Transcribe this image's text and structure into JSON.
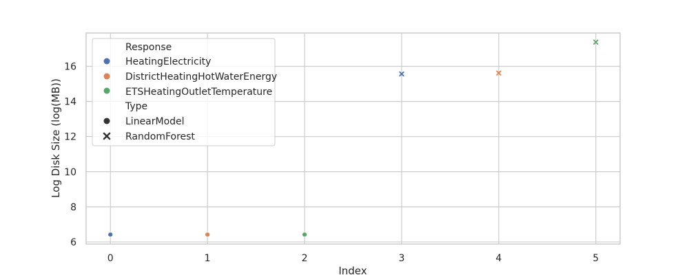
{
  "chart_data": {
    "type": "scatter",
    "title": "",
    "xlabel": "Index",
    "ylabel": "Log Disk Size (log(MB))",
    "xlim": [
      -0.25,
      5.25
    ],
    "ylim": [
      5.88,
      17.9
    ],
    "xticks": [
      0,
      1,
      2,
      3,
      4,
      5
    ],
    "yticks": [
      6,
      8,
      10,
      12,
      14,
      16
    ],
    "grid": true,
    "legend_position": "upper-left",
    "legend": {
      "hue_title": "Response",
      "style_title": "Type",
      "hue_entries": [
        {
          "label": "HeatingElectricity",
          "color": "#4c72b0"
        },
        {
          "label": "DistrictHeatingHotWaterEnergy",
          "color": "#dd8452"
        },
        {
          "label": "ETSHeatingOutletTemperature",
          "color": "#55a868"
        }
      ],
      "style_entries": [
        {
          "label": "LinearModel",
          "marker": "circle"
        },
        {
          "label": "RandomForest",
          "marker": "x"
        }
      ]
    },
    "points": [
      {
        "x": 0,
        "y": 6.42,
        "response": "HeatingElectricity",
        "type": "LinearModel"
      },
      {
        "x": 1,
        "y": 6.42,
        "response": "DistrictHeatingHotWaterEnergy",
        "type": "LinearModel"
      },
      {
        "x": 2,
        "y": 6.42,
        "response": "ETSHeatingOutletTemperature",
        "type": "LinearModel"
      },
      {
        "x": 3,
        "y": 15.57,
        "response": "HeatingElectricity",
        "type": "RandomForest"
      },
      {
        "x": 4,
        "y": 15.62,
        "response": "DistrictHeatingHotWaterEnergy",
        "type": "RandomForest"
      },
      {
        "x": 5,
        "y": 17.38,
        "response": "ETSHeatingOutletTemperature",
        "type": "RandomForest"
      }
    ]
  }
}
